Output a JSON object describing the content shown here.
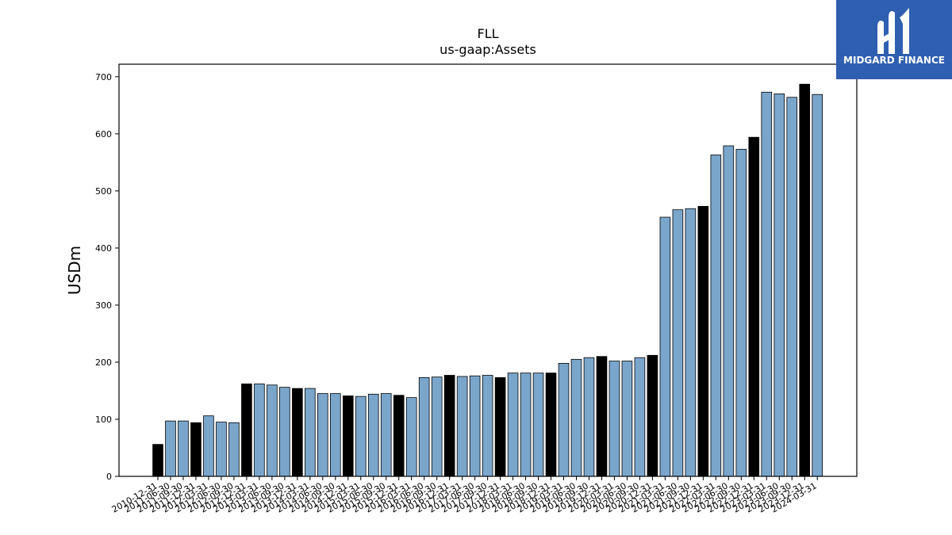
{
  "brand": {
    "logo_text": "MIDGARD FINANCE",
    "logo_color": "#2f5fb0"
  },
  "colors": {
    "bar_fill": "#7aa6cc",
    "bar_highlight": "#000000",
    "axis": "#000000"
  },
  "chart_data": {
    "type": "bar",
    "title": "FLL",
    "subtitle": "us-gaap:Assets",
    "xlabel": "",
    "ylabel": "USDm",
    "ylim": [
      0,
      722
    ],
    "yticks": [
      0,
      100,
      200,
      300,
      400,
      500,
      600,
      700
    ],
    "grid": false,
    "highlight_note": "year-end bars drawn black",
    "categories": [
      "2010-12-31",
      "2011-06-30",
      "2011-09-30",
      "2011-12-31",
      "2012-03-31",
      "2012-06-30",
      "2012-09-30",
      "2012-12-31",
      "2013-03-31",
      "2013-06-30",
      "2013-09-30",
      "2013-12-31",
      "2014-03-31",
      "2014-06-30",
      "2014-09-30",
      "2014-12-31",
      "2015-03-31",
      "2015-06-30",
      "2015-09-30",
      "2015-12-31",
      "2016-03-31",
      "2016-06-30",
      "2016-09-30",
      "2016-12-31",
      "2017-03-31",
      "2017-06-30",
      "2017-09-30",
      "2017-12-31",
      "2018-03-31",
      "2018-06-30",
      "2018-09-30",
      "2018-12-31",
      "2019-03-31",
      "2019-06-30",
      "2019-09-30",
      "2019-12-31",
      "2020-03-31",
      "2020-06-30",
      "2020-09-30",
      "2020-12-31",
      "2021-03-31",
      "2021-06-30",
      "2021-09-30",
      "2021-12-31",
      "2022-03-31",
      "2022-06-30",
      "2022-09-30",
      "2022-12-31",
      "2023-03-31",
      "2023-06-30",
      "2023-09-30",
      "2023-12-31",
      "2024-03-31"
    ],
    "values": [
      56,
      97,
      97,
      94,
      106,
      95,
      94,
      162,
      162,
      160,
      156,
      154,
      154,
      145,
      145,
      141,
      140,
      144,
      145,
      142,
      138,
      173,
      174,
      177,
      175,
      176,
      177,
      173,
      181,
      181,
      181,
      181,
      198,
      205,
      208,
      210,
      202,
      202,
      208,
      212,
      454,
      467,
      469,
      473,
      563,
      579,
      573,
      594,
      673,
      670,
      664,
      687,
      669
    ],
    "highlighted": [
      true,
      false,
      false,
      true,
      false,
      false,
      false,
      true,
      false,
      false,
      false,
      true,
      false,
      false,
      false,
      true,
      false,
      false,
      false,
      true,
      false,
      false,
      false,
      true,
      false,
      false,
      false,
      true,
      false,
      false,
      false,
      true,
      false,
      false,
      false,
      true,
      false,
      false,
      false,
      true,
      false,
      false,
      false,
      true,
      false,
      false,
      false,
      true,
      false,
      false,
      false,
      true,
      false
    ]
  }
}
